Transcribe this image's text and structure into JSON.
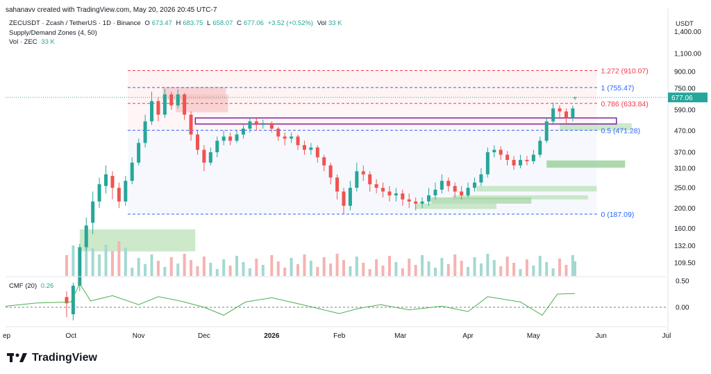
{
  "header": {
    "author_line": "sahanavv created with TradingView.com, May 20, 2026 20:45 UTC-7"
  },
  "legend": {
    "symbol": "ZECUSDT · Zcash / TetherUS · 1D · Binance",
    "open_label": "O",
    "open": "673.47",
    "high_label": "H",
    "high": "683.75",
    "low_label": "L",
    "low": "658.07",
    "close_label": "C",
    "close": "677.06",
    "change": "+3.52 (+0.52%)",
    "vol_label": "Vol",
    "vol": "33 K",
    "indicator": "Supply/Demand Zones (4, 50)",
    "volume_line_label": "Vol · ZEC",
    "volume_line_value": "33 K",
    "cmf_label": "CMF (20)",
    "cmf_value": "0.26"
  },
  "price_axis": {
    "currency": "USDT",
    "ticks": [
      "1,400.00",
      "1,100.00",
      "900.00",
      "750.00",
      "590.00",
      "470.00",
      "370.00",
      "310.00",
      "250.00",
      "200.00",
      "160.00",
      "132.00",
      "109.50"
    ],
    "current_price": "677.06"
  },
  "cmf_axis": {
    "ticks": [
      "0.50",
      "0.00"
    ]
  },
  "time_axis": {
    "ticks": [
      "ep",
      "Oct",
      "Nov",
      "Dec",
      "2026",
      "Feb",
      "Mar",
      "Apr",
      "May",
      "Jun",
      "Jul"
    ]
  },
  "fib_levels": [
    {
      "label": "1.272 (910.07)",
      "value": 910.07,
      "color": "#f23645"
    },
    {
      "label": "1 (755.47)",
      "value": 755.47,
      "color": "#2962ff"
    },
    {
      "label": "0.786 (633.84)",
      "value": 633.84,
      "color": "#f23645"
    },
    {
      "label": "0.5 (471.28)",
      "value": 471.28,
      "color": "#2962ff"
    },
    {
      "label": "0 (187.09)",
      "value": 187.09,
      "color": "#2962ff"
    }
  ],
  "colors": {
    "up": "#26a69a",
    "down": "#ef5350",
    "cmf": "#4caf50",
    "supply": "#f7c5c5",
    "demand": "#b7dfb3",
    "zone_outline": "#7b1fa2"
  },
  "chart_data": {
    "type": "candlestick",
    "title": "ZECUSDT · Zcash / TetherUS · 1D · Binance",
    "y_scale": "log",
    "x_range": [
      "2025-09-01",
      "2026-07-01"
    ],
    "series": [
      {
        "name": "ZECUSDT",
        "ohlc": [
          [
            "2025-09-29",
            75,
            70,
            80,
            60
          ],
          [
            "2025-10-02",
            62,
            85,
            88,
            58
          ],
          [
            "2025-10-05",
            85,
            130,
            135,
            80
          ],
          [
            "2025-10-08",
            130,
            165,
            180,
            125
          ],
          [
            "2025-10-11",
            170,
            215,
            240,
            150
          ],
          [
            "2025-10-14",
            215,
            260,
            280,
            200
          ],
          [
            "2025-10-17",
            255,
            290,
            320,
            235
          ],
          [
            "2025-10-20",
            285,
            250,
            300,
            220
          ],
          [
            "2025-10-23",
            250,
            215,
            265,
            200
          ],
          [
            "2025-10-26",
            215,
            270,
            285,
            205
          ],
          [
            "2025-10-29",
            270,
            330,
            350,
            260
          ],
          [
            "2025-11-01",
            330,
            410,
            430,
            320
          ],
          [
            "2025-11-04",
            410,
            520,
            560,
            390
          ],
          [
            "2025-11-07",
            520,
            650,
            720,
            500
          ],
          [
            "2025-11-10",
            650,
            560,
            680,
            520
          ],
          [
            "2025-11-13",
            560,
            700,
            745,
            540
          ],
          [
            "2025-11-16",
            700,
            620,
            720,
            590
          ],
          [
            "2025-11-19",
            620,
            700,
            740,
            600
          ],
          [
            "2025-11-22",
            700,
            560,
            710,
            530
          ],
          [
            "2025-11-25",
            560,
            450,
            580,
            420
          ],
          [
            "2025-11-28",
            450,
            380,
            470,
            360
          ],
          [
            "2025-12-01",
            380,
            330,
            400,
            300
          ],
          [
            "2025-12-04",
            330,
            370,
            390,
            320
          ],
          [
            "2025-12-07",
            370,
            420,
            440,
            350
          ],
          [
            "2025-12-10",
            420,
            440,
            470,
            400
          ],
          [
            "2025-12-13",
            440,
            420,
            460,
            400
          ],
          [
            "2025-12-16",
            420,
            450,
            470,
            410
          ],
          [
            "2025-12-19",
            450,
            480,
            500,
            430
          ],
          [
            "2025-12-22",
            480,
            520,
            540,
            460
          ],
          [
            "2025-12-25",
            520,
            500,
            540,
            470
          ],
          [
            "2025-12-28",
            500,
            510,
            530,
            480
          ],
          [
            "2026-01-01",
            510,
            480,
            520,
            460
          ],
          [
            "2026-01-04",
            480,
            440,
            490,
            420
          ],
          [
            "2026-01-07",
            440,
            430,
            460,
            400
          ],
          [
            "2026-01-10",
            430,
            440,
            460,
            410
          ],
          [
            "2026-01-13",
            440,
            400,
            450,
            380
          ],
          [
            "2026-01-16",
            400,
            380,
            420,
            360
          ],
          [
            "2026-01-19",
            380,
            390,
            410,
            360
          ],
          [
            "2026-01-22",
            390,
            350,
            400,
            330
          ],
          [
            "2026-01-25",
            350,
            320,
            360,
            300
          ],
          [
            "2026-01-28",
            320,
            280,
            330,
            260
          ],
          [
            "2026-01-31",
            280,
            240,
            290,
            220
          ],
          [
            "2026-02-03",
            240,
            205,
            250,
            187
          ],
          [
            "2026-02-06",
            205,
            250,
            270,
            195
          ],
          [
            "2026-02-09",
            250,
            300,
            330,
            240
          ],
          [
            "2026-02-12",
            300,
            290,
            320,
            270
          ],
          [
            "2026-02-15",
            290,
            260,
            300,
            240
          ],
          [
            "2026-02-18",
            260,
            250,
            275,
            235
          ],
          [
            "2026-02-21",
            250,
            240,
            265,
            225
          ],
          [
            "2026-02-24",
            240,
            230,
            255,
            215
          ],
          [
            "2026-02-27",
            230,
            235,
            250,
            215
          ],
          [
            "2026-03-02",
            235,
            220,
            245,
            205
          ],
          [
            "2026-03-05",
            220,
            215,
            235,
            200
          ],
          [
            "2026-03-08",
            215,
            210,
            225,
            195
          ],
          [
            "2026-03-11",
            210,
            215,
            225,
            200
          ],
          [
            "2026-03-14",
            215,
            230,
            250,
            205
          ],
          [
            "2026-03-17",
            230,
            245,
            265,
            220
          ],
          [
            "2026-03-20",
            245,
            270,
            290,
            235
          ],
          [
            "2026-03-23",
            270,
            255,
            280,
            240
          ],
          [
            "2026-03-26",
            255,
            240,
            265,
            225
          ],
          [
            "2026-03-29",
            240,
            230,
            255,
            220
          ],
          [
            "2026-04-01",
            230,
            250,
            265,
            225
          ],
          [
            "2026-04-04",
            250,
            265,
            280,
            240
          ],
          [
            "2026-04-07",
            265,
            290,
            310,
            255
          ],
          [
            "2026-04-10",
            290,
            370,
            390,
            280
          ],
          [
            "2026-04-13",
            370,
            380,
            400,
            350
          ],
          [
            "2026-04-16",
            380,
            360,
            395,
            340
          ],
          [
            "2026-04-19",
            360,
            340,
            375,
            320
          ],
          [
            "2026-04-22",
            340,
            320,
            355,
            305
          ],
          [
            "2026-04-25",
            320,
            340,
            360,
            310
          ],
          [
            "2026-04-28",
            340,
            335,
            355,
            320
          ],
          [
            "2026-05-01",
            335,
            360,
            380,
            325
          ],
          [
            "2026-05-04",
            360,
            420,
            440,
            350
          ],
          [
            "2026-05-07",
            420,
            520,
            540,
            410
          ],
          [
            "2026-05-10",
            520,
            600,
            640,
            500
          ],
          [
            "2026-05-13",
            600,
            580,
            620,
            540
          ],
          [
            "2026-05-16",
            580,
            540,
            600,
            510
          ],
          [
            "2026-05-19",
            540,
            600,
            620,
            520
          ],
          [
            "2026-05-20",
            673.47,
            677.06,
            683.75,
            658.07
          ]
        ]
      }
    ],
    "cmf": [
      [
        "2025-09-01",
        0.02
      ],
      [
        "2025-09-15",
        0.08
      ],
      [
        "2025-10-01",
        0.1
      ],
      [
        "2025-10-05",
        0.45
      ],
      [
        "2025-10-10",
        0.12
      ],
      [
        "2025-10-20",
        0.22
      ],
      [
        "2025-11-01",
        0.05
      ],
      [
        "2025-11-10",
        0.2
      ],
      [
        "2025-11-20",
        0.12
      ],
      [
        "2025-12-01",
        0.0
      ],
      [
        "2025-12-10",
        -0.15
      ],
      [
        "2025-12-20",
        0.1
      ],
      [
        "2026-01-01",
        0.18
      ],
      [
        "2026-01-15",
        0.05
      ],
      [
        "2026-02-01",
        -0.12
      ],
      [
        "2026-02-10",
        -0.02
      ],
      [
        "2026-02-20",
        0.05
      ],
      [
        "2026-03-05",
        -0.05
      ],
      [
        "2026-03-20",
        0.02
      ],
      [
        "2026-04-01",
        -0.08
      ],
      [
        "2026-04-10",
        0.2
      ],
      [
        "2026-04-25",
        0.1
      ],
      [
        "2026-05-05",
        -0.15
      ],
      [
        "2026-05-12",
        0.25
      ],
      [
        "2026-05-20",
        0.26
      ]
    ]
  }
}
